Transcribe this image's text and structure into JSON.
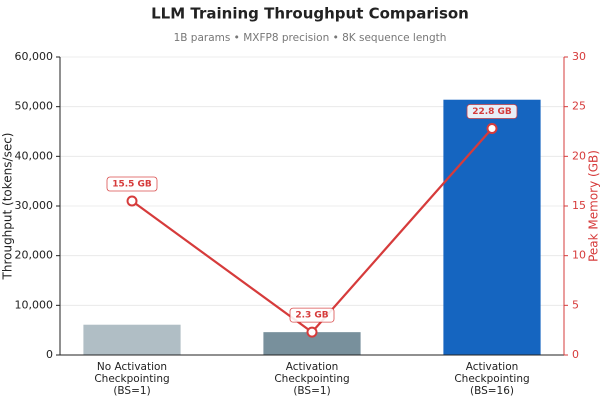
{
  "chart_data": {
    "type": "combo",
    "title": "LLM Training Throughput Comparison",
    "subtitle": "1B params  •  MXFP8 precision  •  8K sequence length",
    "y_label": "Throughput (tokens/sec)",
    "y2_label": "Peak Memory (GB)",
    "categories": [
      "No Activation\nCheckpointing\n(BS=1)",
      "Activation\nCheckpointing\n(BS=1)",
      "Activation\nCheckpointing\n(BS=16)"
    ],
    "series": [
      {
        "type": "bar",
        "colors": [
          "#b0bec5",
          "#78909c",
          "#1565c0"
        ],
        "values": [
          6100,
          4600,
          51400
        ]
      },
      {
        "type": "line",
        "axis": "y2",
        "color": "#d63b3b",
        "values": [
          15.5,
          2.3,
          22.8
        ],
        "value_labels": [
          "15.5 GB",
          "2.3 GB",
          "22.8 GB"
        ]
      }
    ],
    "ylim": [
      0,
      60000
    ],
    "yticks": [
      0,
      {
        "value": 10000,
        "label": "10,000"
      },
      {
        "value": 20000,
        "label": "20,000"
      },
      {
        "value": 30000,
        "label": "30,000"
      },
      {
        "value": 40000,
        "label": "40,000"
      },
      {
        "value": 50000,
        "label": "50,000"
      },
      {
        "value": 60000,
        "label": "60,000"
      }
    ],
    "y2lim": [
      0,
      30
    ],
    "y2ticks": [
      0,
      5,
      10,
      15,
      20,
      25,
      30
    ],
    "grid": true
  }
}
